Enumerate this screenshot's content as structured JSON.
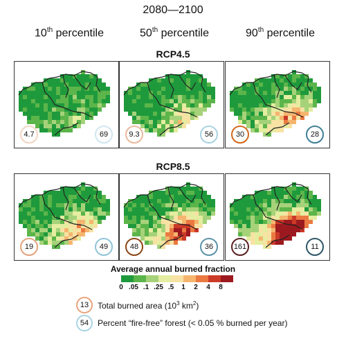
{
  "title": "2080—2100",
  "columns": [
    {
      "label": "10",
      "sup": "th",
      "suffix": " percentile"
    },
    {
      "label": "50",
      "sup": "th",
      "suffix": " percentile"
    },
    {
      "label": "90",
      "sup": "th",
      "suffix": " percentile"
    }
  ],
  "scenarios": [
    "RCP4.5",
    "RCP8.5"
  ],
  "panels": [
    {
      "scenario": "RCP4.5",
      "column": "10th percentile",
      "total_burned_area": "4.7",
      "percent_fire_free": "69",
      "burned_level": 0.15,
      "left_color": "#f2d5c2",
      "right_color": "#cfe6ef"
    },
    {
      "scenario": "RCP4.5",
      "column": "50th percentile",
      "total_burned_area": "9.3",
      "percent_fire_free": "56",
      "burned_level": 0.3,
      "left_color": "#eab99d",
      "right_color": "#a9d3e2"
    },
    {
      "scenario": "RCP4.5",
      "column": "90th percentile",
      "total_burned_area": "30",
      "percent_fire_free": "28",
      "burned_level": 0.5,
      "left_color": "#d2691e",
      "right_color": "#3f7f96"
    },
    {
      "scenario": "RCP8.5",
      "column": "10th percentile",
      "total_burned_area": "19",
      "percent_fire_free": "49",
      "burned_level": 0.45,
      "left_color": "#e3a27c",
      "right_color": "#8fc4d8"
    },
    {
      "scenario": "RCP8.5",
      "column": "50th percentile",
      "total_burned_area": "48",
      "percent_fire_free": "36",
      "burned_level": 0.65,
      "left_color": "#8b4513",
      "right_color": "#5b93a8"
    },
    {
      "scenario": "RCP8.5",
      "column": "90th percentile",
      "total_burned_area": "161",
      "percent_fire_free": "11",
      "burned_level": 0.9,
      "left_color": "#5a1f1f",
      "right_color": "#2e5666"
    }
  ],
  "legend": {
    "title": "Average annual burned fraction",
    "ticks": [
      "0",
      ".05",
      ".1",
      ".25",
      ".5",
      "1",
      "2",
      "4",
      "8"
    ],
    "colors": [
      "#1e9a3c",
      "#5cb54a",
      "#a6d27a",
      "#e4eda0",
      "#f7e2a4",
      "#f5b56e",
      "#ea7a42",
      "#cc3a28",
      "#9c1a1f"
    ]
  },
  "key": {
    "burned_example": "13",
    "burned_label": "Total burned area (10",
    "burned_label_sup": "3",
    "burned_label_unit": " km",
    "burned_label_sup2": "2",
    "burned_label_end": ")",
    "burned_color": "#e8a37c",
    "fire_free_example": "54",
    "fire_free_label": "Percent “fire-free” forest (< 0.05 % burned per year)",
    "fire_free_color": "#a9d3e2"
  }
}
